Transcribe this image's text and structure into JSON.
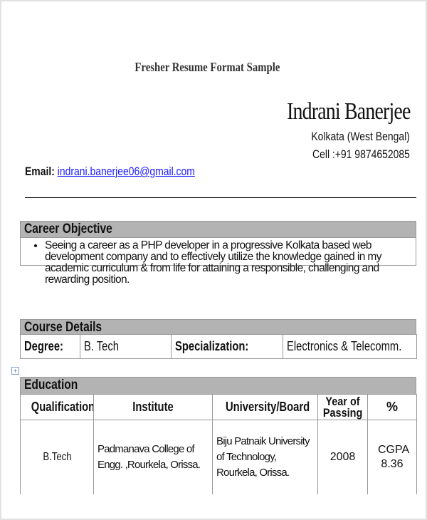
{
  "title": "Fresher Resume Format Sample",
  "header": {
    "name": "Indrani Banerjee",
    "location": "Kolkata (West Bengal)",
    "cell": "Cell :+91 9874652085",
    "email_label": "Email:",
    "email": "indrani.banerjee06@gmail.com"
  },
  "career_objective": {
    "heading": "Career Objective",
    "bullets": [
      "Seeing a career as a PHP developer in a progressive Kolkata based web development company and to effectively utilize the knowledge gained in my academic curriculum & from life for attaining a responsible, challenging and rewarding position."
    ]
  },
  "course_details": {
    "heading": "Course Details",
    "degree_label": "Degree:",
    "degree": "B. Tech",
    "specialization_label": "Specialization:",
    "specialization": "Electronics & Telecomm."
  },
  "education": {
    "heading": "Education",
    "columns": [
      "Qualification",
      "Institute",
      "University/Board",
      "Year of Passing",
      "%"
    ],
    "rows": [
      [
        "B.Tech",
        "Padmanava College of Engg. ,Rourkela, Orissa.",
        "Biju Patnaik University of Technology, Rourkela, Orissa.",
        "2008",
        "CGPA 8.36"
      ]
    ]
  }
}
